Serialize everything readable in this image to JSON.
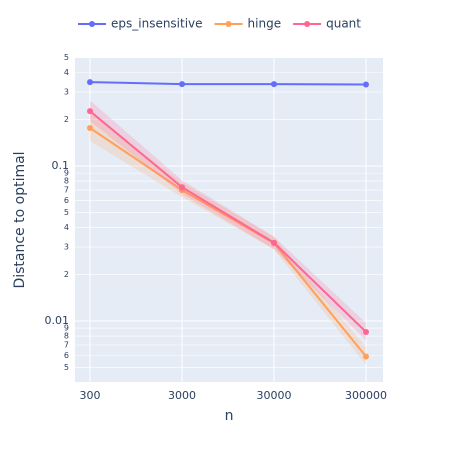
{
  "chart_data": {
    "type": "line",
    "xlabel": "n",
    "ylabel": "Distance to optimal",
    "x": [
      300,
      3000,
      30000,
      300000
    ],
    "xscale": "log",
    "yscale": "log",
    "xlim": [
      206,
      459000
    ],
    "ylim": [
      0.00404,
      0.498
    ],
    "xticks": [
      300,
      3000,
      30000,
      300000
    ],
    "yticks": [
      {
        "value": 0.5,
        "label": "5"
      },
      {
        "value": 0.4,
        "label": "4"
      },
      {
        "value": 0.3,
        "label": "3"
      },
      {
        "value": 0.2,
        "label": "2"
      },
      0.1,
      {
        "value": 0.09,
        "label": "9"
      },
      {
        "value": 0.08,
        "label": "8"
      },
      {
        "value": 0.07,
        "label": "7"
      },
      {
        "value": 0.06,
        "label": "6"
      },
      {
        "value": 0.05,
        "label": "5"
      },
      {
        "value": 0.04,
        "label": "4"
      },
      {
        "value": 0.03,
        "label": "3"
      },
      {
        "value": 0.02,
        "label": "2"
      },
      0.01,
      {
        "value": 0.009,
        "label": "9"
      },
      {
        "value": 0.008,
        "label": "8"
      },
      {
        "value": 0.007,
        "label": "7"
      },
      {
        "value": 0.006,
        "label": "6"
      },
      {
        "value": 0.005,
        "label": "5"
      }
    ],
    "grid": true,
    "legend": "top",
    "series": [
      {
        "name": "eps_insensitive",
        "color": "#636efa",
        "values": [
          0.348,
          0.338,
          0.338,
          0.336
        ]
      },
      {
        "name": "hinge",
        "color": "#ffa15a",
        "values": [
          0.176,
          0.07,
          0.0318,
          0.0059
        ],
        "lower": [
          0.145,
          0.063,
          0.029,
          0.0052
        ],
        "upper": [
          0.22,
          0.078,
          0.035,
          0.0068
        ]
      },
      {
        "name": "quant",
        "color": "#ff6692",
        "values": [
          0.226,
          0.073,
          0.032,
          0.0085
        ],
        "lower": [
          0.195,
          0.066,
          0.029,
          0.0075
        ],
        "upper": [
          0.265,
          0.081,
          0.035,
          0.0097
        ]
      }
    ]
  }
}
